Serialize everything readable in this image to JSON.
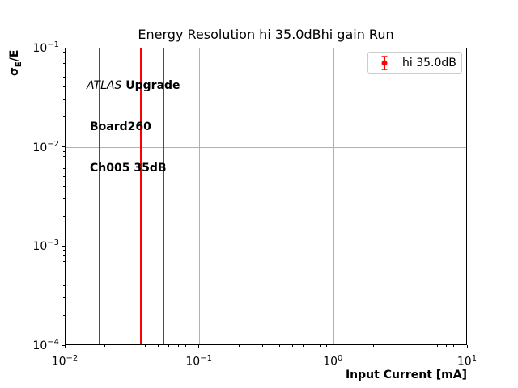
{
  "title": "Energy Resolution hi 35.0dBhi gain Run",
  "axes": {
    "xlabel": "Input Current [mA]",
    "ylabel": {
      "sigma": "σ",
      "sub": "E",
      "rest": "/E"
    }
  },
  "annotation": {
    "line1_italic": "ATLAS",
    "line1_bold": " Upgrade",
    "line2": "Board260",
    "line3": "Ch005 35dB"
  },
  "legend": {
    "label": "hi 35.0dB",
    "marker_color": "#ff0000"
  },
  "chart_data": {
    "type": "line",
    "title": "Energy Resolution hi 35.0dBhi gain Run",
    "xlabel": "Input Current [mA]",
    "ylabel": "σ_E/E",
    "xscale": "log",
    "yscale": "log",
    "xlim": [
      0.01,
      10
    ],
    "ylim": [
      0.0001,
      0.1
    ],
    "x_tick_exponents": [
      -2,
      -1,
      0,
      1
    ],
    "y_tick_exponents": [
      -1,
      -2,
      -3,
      -4
    ],
    "grid": true,
    "legend_position": "upper right",
    "series": [
      {
        "name": "hi 35.0dB",
        "color": "#ff0000",
        "style": "full-height-vertical-errorbar-lines",
        "x": [
          0.0179,
          0.0363,
          0.0535
        ]
      }
    ],
    "colors": {
      "grid": "#b0b0b0",
      "spine": "#000000",
      "text": "#000000",
      "background": "#ffffff"
    }
  }
}
